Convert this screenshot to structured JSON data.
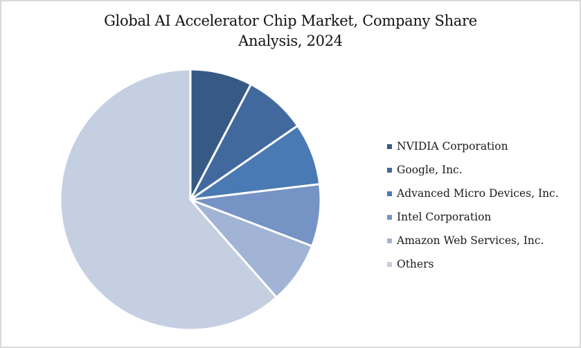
{
  "chart_data": {
    "type": "pie",
    "title": "Global AI Accelerator Chip Market, Company Share Analysis, 2024",
    "title_lines": [
      "Global AI Accelerator Chip Market, Company Share",
      "Analysis, 2024"
    ],
    "categories": [
      "NVIDIA Corporation",
      "Google, Inc.",
      "Advanced Micro Devices, Inc.",
      "Intel Corporation",
      "Amazon Web Services, Inc.",
      "Others"
    ],
    "values": [
      7.7,
      7.7,
      7.7,
      7.7,
      7.7,
      61.5
    ],
    "colors": [
      "#375A85",
      "#41699D",
      "#4A7AB4",
      "#7593C4",
      "#A2B4D5",
      "#C5CFE2"
    ],
    "start_angle_deg": 0,
    "direction": "clockwise",
    "legend_position": "right",
    "data_labels": false
  },
  "legend": {
    "items": [
      {
        "label": "NVIDIA Corporation",
        "color": "#375A85"
      },
      {
        "label": "Google, Inc.",
        "color": "#41699D"
      },
      {
        "label": "Advanced Micro Devices, Inc.",
        "color": "#4A7AB4"
      },
      {
        "label": "Intel Corporation",
        "color": "#7593C4"
      },
      {
        "label": "Amazon Web Services, Inc.",
        "color": "#A2B4D5"
      },
      {
        "label": "Others",
        "color": "#C5CFE2"
      }
    ]
  }
}
